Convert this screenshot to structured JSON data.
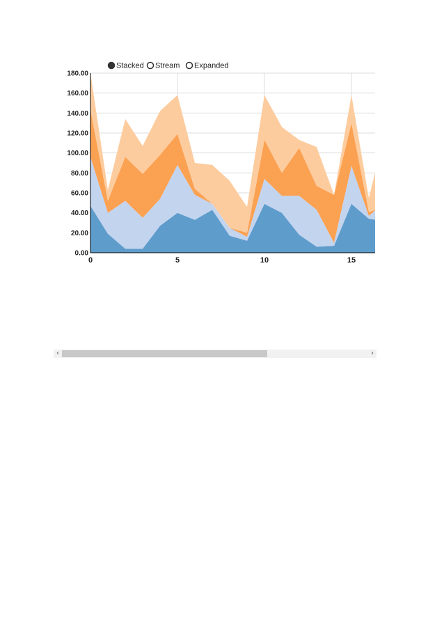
{
  "chart_data": {
    "type": "area",
    "stacked": true,
    "legend": {
      "placement": "top-left",
      "items": [
        {
          "label": "Stacked",
          "selected": true
        },
        {
          "label": "Stream",
          "selected": false
        },
        {
          "label": "Expanded",
          "selected": false
        }
      ]
    },
    "x": [
      0,
      1,
      2,
      3,
      4,
      5,
      6,
      7,
      8,
      9,
      10,
      11,
      12,
      13,
      14,
      15,
      16,
      16.4
    ],
    "x_ticks": [
      0,
      5,
      10,
      15
    ],
    "y_ticks": [
      "0.00",
      "20.00",
      "40.00",
      "60.00",
      "80.00",
      "100.00",
      "120.00",
      "140.00",
      "160.00",
      "180.00"
    ],
    "ylim": [
      0,
      180
    ],
    "grid": true,
    "series": [
      {
        "color": "#5e9ccc",
        "values": [
          47,
          19,
          4,
          4,
          27,
          40,
          33,
          43,
          17,
          12,
          49,
          40,
          18,
          6,
          7,
          49,
          34,
          33
        ]
      },
      {
        "color": "#c3d4ef",
        "values": [
          49,
          21,
          48,
          31,
          27,
          48,
          25,
          6,
          8,
          4,
          25,
          17,
          39,
          37,
          3,
          38,
          3,
          10
        ]
      },
      {
        "color": "#fba152",
        "values": [
          47,
          12,
          44,
          44,
          44,
          31,
          6,
          0,
          0,
          4,
          39,
          23,
          48,
          24,
          48,
          43,
          4,
          0
        ]
      },
      {
        "color": "#fdcc9e",
        "values": [
          37,
          11,
          38,
          28,
          44,
          39,
          26,
          39,
          47,
          26,
          45,
          46,
          8,
          39,
          0,
          28,
          14,
          40
        ]
      }
    ]
  },
  "scrollbar": {
    "left_arrow": "‹",
    "right_arrow": "›",
    "position": 0.0,
    "visible_fraction": 0.67
  }
}
